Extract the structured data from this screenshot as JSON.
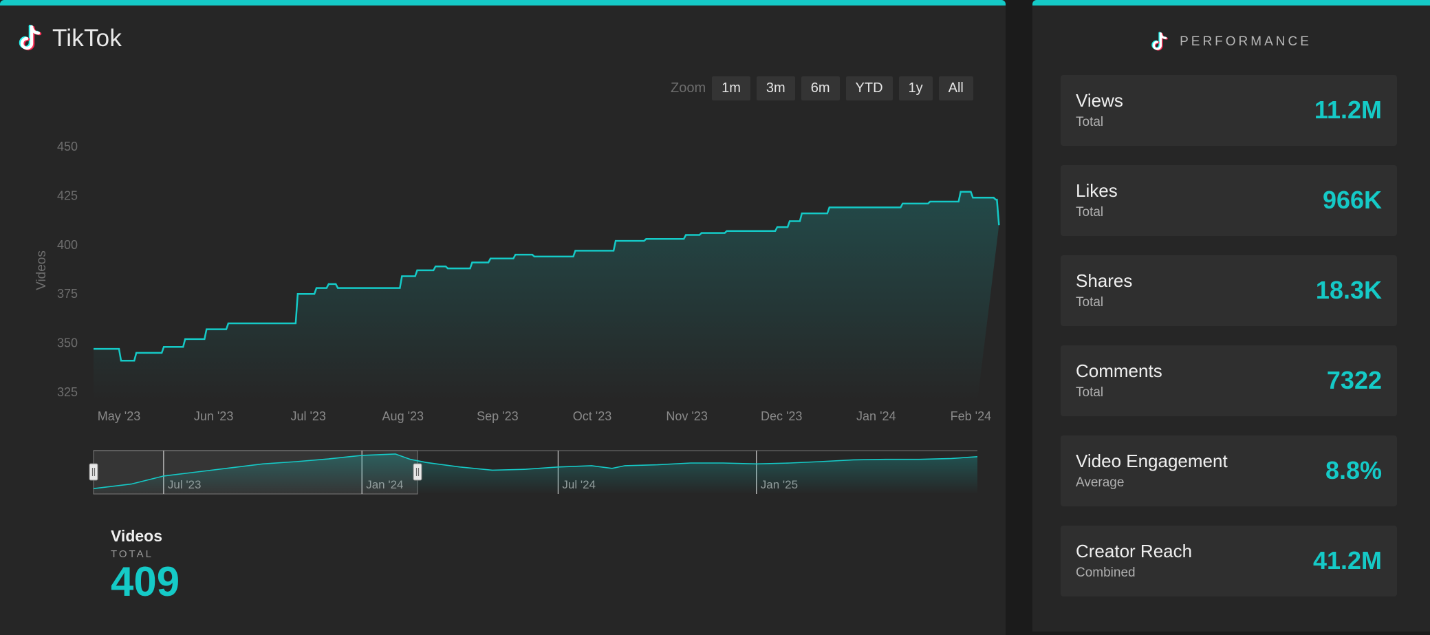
{
  "app": {
    "title": "TikTok"
  },
  "zoom": {
    "label": "Zoom",
    "buttons": [
      "1m",
      "3m",
      "6m",
      "YTD",
      "1y",
      "All"
    ]
  },
  "chart_data": [
    {
      "type": "area",
      "ylabel": "Videos",
      "ylim": [
        320,
        455
      ],
      "yticks": [
        325,
        350,
        375,
        400,
        425,
        450
      ],
      "xtick_labels": [
        "May '23",
        "Jun '23",
        "Jul '23",
        "Aug '23",
        "Sep '23",
        "Oct '23",
        "Nov '23",
        "Dec '23",
        "Jan '24",
        "Feb '24"
      ],
      "x": [
        "2023-04-27",
        "2023-05-01",
        "2023-05-06",
        "2023-05-15",
        "2023-05-22",
        "2023-05-29",
        "2023-06-05",
        "2023-06-15",
        "2023-06-27",
        "2023-06-29",
        "2023-07-03",
        "2023-07-07",
        "2023-07-10",
        "2023-07-31",
        "2023-08-05",
        "2023-08-11",
        "2023-08-15",
        "2023-08-23",
        "2023-08-29",
        "2023-09-06",
        "2023-09-12",
        "2023-09-25",
        "2023-10-08",
        "2023-10-18",
        "2023-10-31",
        "2023-11-05",
        "2023-11-13",
        "2023-11-23",
        "2023-11-29",
        "2023-12-03",
        "2023-12-07",
        "2023-12-16",
        "2024-01-09",
        "2024-01-18",
        "2024-01-28",
        "2024-02-01",
        "2024-02-08",
        "2024-02-09"
      ],
      "values": [
        347,
        341,
        345,
        348,
        352,
        357,
        360,
        360,
        375,
        375,
        378,
        380,
        378,
        384,
        387,
        389,
        388,
        391,
        393,
        395,
        394,
        397,
        402,
        403,
        405,
        406,
        407,
        407,
        409,
        412,
        416,
        419,
        421,
        422,
        427,
        424,
        423,
        410
      ]
    },
    {
      "type": "line",
      "xtick_labels": [
        "Jul '23",
        "Jan '24",
        "Jul '24",
        "Jan '25"
      ],
      "x": [
        "2023-04-27",
        "2023-06-01",
        "2023-07-01",
        "2023-08-01",
        "2023-09-01",
        "2023-10-01",
        "2023-11-01",
        "2023-12-01",
        "2024-01-01",
        "2024-02-01",
        "2024-02-15",
        "2024-03-01",
        "2024-04-01",
        "2024-05-01",
        "2024-06-01",
        "2024-07-01",
        "2024-08-01",
        "2024-08-20",
        "2024-09-01",
        "2024-10-01",
        "2024-11-01",
        "2024-12-01",
        "2025-01-01",
        "2025-02-01",
        "2025-03-01",
        "2025-04-01",
        "2025-05-01",
        "2025-06-01",
        "2025-07-01",
        "2025-07-25"
      ],
      "values": [
        347,
        357,
        375,
        384,
        393,
        402,
        407,
        413,
        421,
        424,
        412,
        405,
        395,
        388,
        390,
        395,
        398,
        392,
        398,
        400,
        404,
        404,
        402,
        404,
        407,
        411,
        412,
        412,
        414,
        418
      ]
    }
  ],
  "summary": {
    "title": "Videos",
    "subtitle": "TOTAL",
    "value": "409"
  },
  "performance": {
    "title": "PERFORMANCE",
    "cards": [
      {
        "label": "Views",
        "sub": "Total",
        "value": "11.2M"
      },
      {
        "label": "Likes",
        "sub": "Total",
        "value": "966K"
      },
      {
        "label": "Shares",
        "sub": "Total",
        "value": "18.3K"
      },
      {
        "label": "Comments",
        "sub": "Total",
        "value": "7322"
      },
      {
        "label": "Video Engagement",
        "sub": "Average",
        "value": "8.8%"
      },
      {
        "label": "Creator Reach",
        "sub": "Combined",
        "value": "41.2M"
      }
    ]
  },
  "colors": {
    "accent": "#15cac7",
    "panel": "#262626",
    "card": "#2f2f2f",
    "background": "#1b1b1b"
  }
}
